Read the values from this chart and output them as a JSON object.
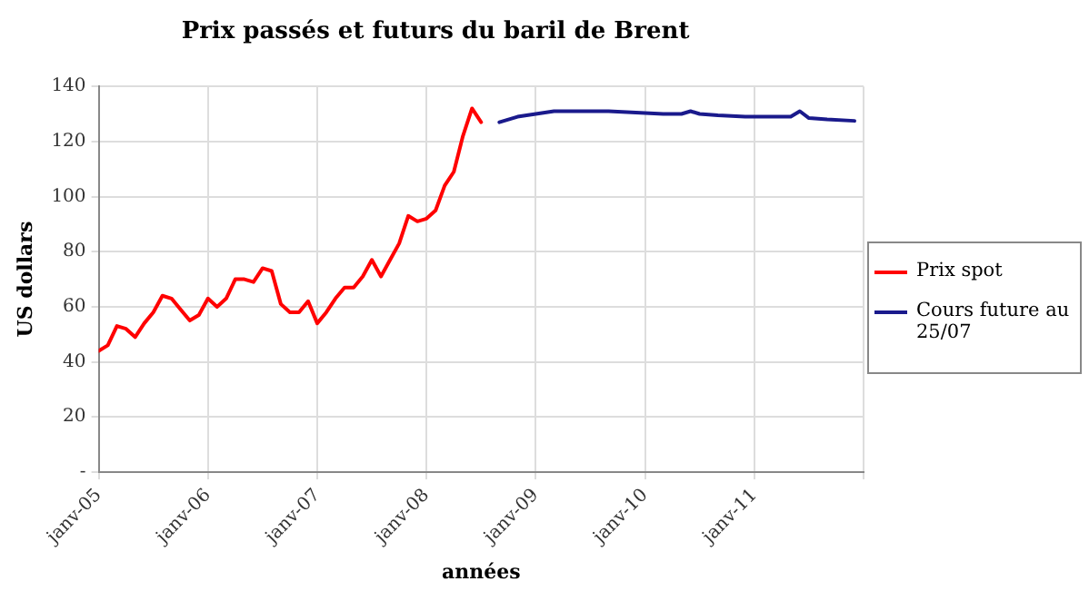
{
  "chart_data": {
    "type": "line",
    "title": "Prix passés et futurs du baril de Brent",
    "xlabel": "années",
    "ylabel": "US dollars",
    "xlim": [
      "2005-01",
      "2012-01"
    ],
    "xticks": [
      {
        "value": "2005-01",
        "label": "janv-05"
      },
      {
        "value": "2006-01",
        "label": "janv-06"
      },
      {
        "value": "2007-01",
        "label": "janv-07"
      },
      {
        "value": "2008-01",
        "label": "janv-08"
      },
      {
        "value": "2009-01",
        "label": "janv-09"
      },
      {
        "value": "2010-01",
        "label": "janv-10"
      },
      {
        "value": "2011-01",
        "label": "janv-11"
      },
      {
        "value": "2012-01",
        "label": null
      }
    ],
    "ylim": [
      0,
      140
    ],
    "yticks": [
      {
        "value": 0,
        "label": "-"
      },
      20,
      40,
      60,
      80,
      100,
      120,
      140
    ],
    "grid": true,
    "legend": "right",
    "marker": "none",
    "line_style": "solid",
    "series": [
      {
        "name": "Prix spot",
        "color": "#ff0000",
        "x": [
          "2005-01",
          "2005-02",
          "2005-03",
          "2005-04",
          "2005-05",
          "2005-06",
          "2005-07",
          "2005-08",
          "2005-09",
          "2005-10",
          "2005-11",
          "2005-12",
          "2006-01",
          "2006-02",
          "2006-03",
          "2006-04",
          "2006-05",
          "2006-06",
          "2006-07",
          "2006-08",
          "2006-09",
          "2006-10",
          "2006-11",
          "2006-12",
          "2007-01",
          "2007-02",
          "2007-03",
          "2007-04",
          "2007-05",
          "2007-06",
          "2007-07",
          "2007-08",
          "2007-09",
          "2007-10",
          "2007-11",
          "2007-12",
          "2008-01",
          "2008-02",
          "2008-03",
          "2008-04",
          "2008-05",
          "2008-06",
          "2008-07"
        ],
        "values": [
          44,
          46,
          53,
          52,
          49,
          54,
          58,
          64,
          63,
          59,
          55,
          57,
          63,
          60,
          63,
          70,
          70,
          69,
          74,
          73,
          61,
          58,
          58,
          62,
          54,
          58,
          63,
          67,
          67,
          71,
          77,
          71,
          77,
          83,
          93,
          91,
          92,
          95,
          104,
          109,
          122,
          132,
          127
        ]
      },
      {
        "name": "Cours future au 25/07",
        "color": "#1a1a8c",
        "x": [
          "2008-09",
          "2008-11",
          "2009-01",
          "2009-03",
          "2009-06",
          "2009-09",
          "2009-12",
          "2010-03",
          "2010-05",
          "2010-06",
          "2010-07",
          "2010-09",
          "2010-12",
          "2011-03",
          "2011-05",
          "2011-06",
          "2011-07",
          "2011-09",
          "2011-12"
        ],
        "values": [
          127,
          129,
          130,
          131,
          131,
          131,
          130.5,
          130,
          130,
          131,
          130,
          129.5,
          129,
          129,
          129,
          131,
          128.5,
          128,
          127.5
        ]
      }
    ]
  }
}
